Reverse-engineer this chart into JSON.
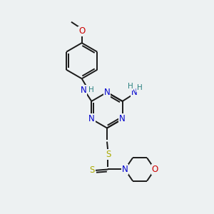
{
  "bg_color": "#edf1f2",
  "bond_color": "#1a1a1a",
  "bond_width": 1.4,
  "atom_colors": {
    "N": "#0000cc",
    "O": "#cc0000",
    "S": "#aaaa00",
    "C": "#1a1a1a",
    "H": "#2a8080"
  },
  "font_size": 8.5,
  "figsize": [
    3.0,
    3.0
  ],
  "dpi": 100,
  "xlim": [
    0,
    10
  ],
  "ylim": [
    0,
    10
  ]
}
